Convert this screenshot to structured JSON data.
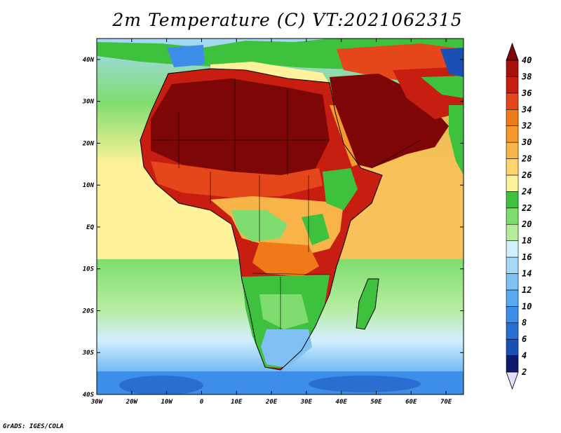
{
  "title": "2m Temperature (C) VT:2021062315",
  "credit": "GrADS: IGES/COLA",
  "map": {
    "lon_range": [
      -30,
      75
    ],
    "lat_range": [
      -40,
      45
    ],
    "lon_ticks": [
      "30W",
      "20W",
      "10W",
      "0",
      "10E",
      "20E",
      "30E",
      "40E",
      "50E",
      "60E",
      "70E"
    ],
    "lat_ticks": [
      "40N",
      "30N",
      "20N",
      "10N",
      "EQ",
      "10S",
      "20S",
      "30S",
      "40S"
    ]
  },
  "colorbar": {
    "labels": [
      "2",
      "4",
      "6",
      "8",
      "10",
      "12",
      "14",
      "16",
      "18",
      "20",
      "22",
      "24",
      "26",
      "28",
      "30",
      "32",
      "34",
      "36",
      "38",
      "40"
    ],
    "colors": [
      "#0f1a6e",
      "#1a50b4",
      "#2a6fd0",
      "#3d8ee8",
      "#5aa8f0",
      "#7fc0f5",
      "#a6d8f8",
      "#d2efff",
      "#b4ec9c",
      "#7edd6e",
      "#3ec23e",
      "#fff29a",
      "#ffd56e",
      "#f8b448",
      "#f59a2a",
      "#f07a18",
      "#e5471b",
      "#c81e12",
      "#a8100c",
      "#7e0606"
    ]
  }
}
